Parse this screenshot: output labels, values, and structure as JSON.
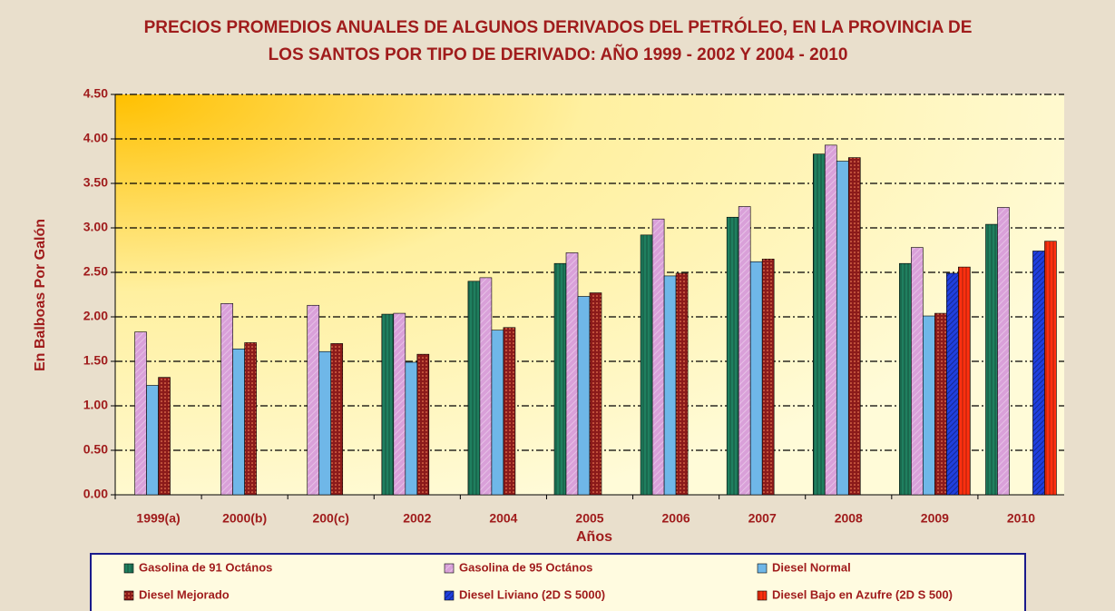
{
  "chart_data": {
    "type": "bar",
    "title": "PRECIOS PROMEDIOS ANUALES DE ALGUNOS DERIVADOS DEL PETRÓLEO, EN LA PROVINCIA DE LOS SANTOS POR TIPO DE DERIVADO: AÑO 1999 - 2002 Y 2004 - 2010",
    "x_label": "Años",
    "y_label": "En Balboas Por Galón",
    "categories": [
      "1999(a)",
      "2000(b)",
      "200(c)",
      "2002",
      "2004",
      "2005",
      "2006",
      "2007",
      "2008",
      "2009",
      "2010"
    ],
    "series": [
      {
        "name": "Gasolina de 91 Octános",
        "color": "#1f7f5f",
        "values": [
          null,
          null,
          null,
          2.03,
          2.4,
          2.6,
          2.92,
          3.12,
          3.83,
          2.6,
          3.04
        ]
      },
      {
        "name": "Gasolina de 95 Octános",
        "color": "#d9a0d9",
        "values": [
          1.83,
          2.15,
          2.13,
          2.04,
          2.44,
          2.72,
          3.1,
          3.24,
          3.93,
          2.78,
          3.23
        ]
      },
      {
        "name": "Diesel Normal",
        "color": "#6fb7e8",
        "values": [
          1.23,
          1.64,
          1.61,
          1.49,
          1.85,
          2.23,
          2.46,
          2.62,
          3.75,
          2.01,
          null
        ]
      },
      {
        "name": "Diesel Mejorado",
        "color": "#8b1a1a",
        "values": [
          1.32,
          1.71,
          1.7,
          1.58,
          1.88,
          2.27,
          2.49,
          2.65,
          3.79,
          2.04,
          null
        ]
      },
      {
        "name": "Diesel Liviano (2D S 5000)",
        "color": "#1f3fdf",
        "values": [
          null,
          null,
          null,
          null,
          null,
          null,
          null,
          null,
          null,
          2.49,
          2.74
        ]
      },
      {
        "name": "Diesel Bajo en Azufre (2D S 500)",
        "color": "#ff3010",
        "values": [
          null,
          null,
          null,
          null,
          null,
          null,
          null,
          null,
          null,
          2.56,
          2.85
        ]
      }
    ],
    "ylim": [
      0,
      4.5
    ],
    "yticks": [
      {
        "value": 0,
        "label": "0.00"
      },
      {
        "value": 0.5,
        "label": "0.50"
      },
      {
        "value": 1,
        "label": "1.00"
      },
      {
        "value": 1.5,
        "label": "1.50"
      },
      {
        "value": 2,
        "label": "2.00"
      },
      {
        "value": 2.5,
        "label": "2.50"
      },
      {
        "value": 3,
        "label": "3.00"
      },
      {
        "value": 3.5,
        "label": "3.50"
      },
      {
        "value": 4,
        "label": "4.00"
      },
      {
        "value": 4.5,
        "label": "4.50"
      }
    ],
    "grid": true
  }
}
